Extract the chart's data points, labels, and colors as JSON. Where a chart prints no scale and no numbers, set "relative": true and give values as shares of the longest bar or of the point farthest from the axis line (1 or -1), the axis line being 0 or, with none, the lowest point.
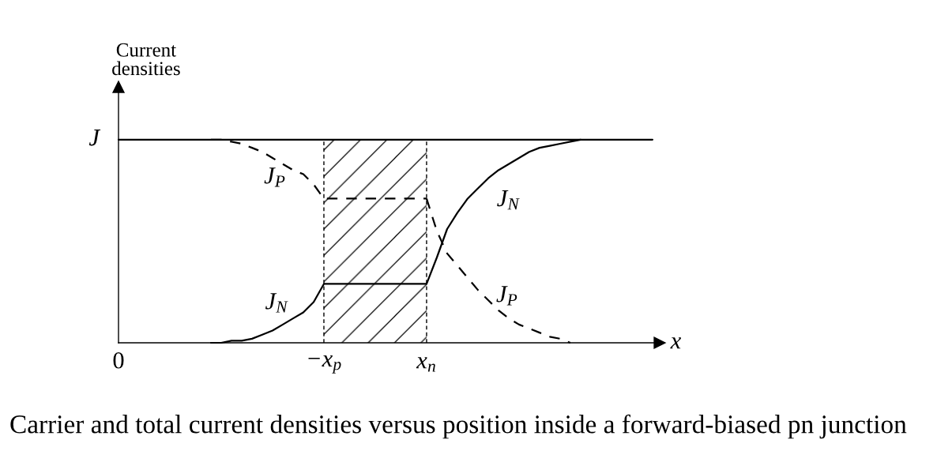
{
  "chart_data": {
    "type": "line",
    "ylabel": "Current\ndensities",
    "xlabel": "x",
    "relative": true,
    "annotations": [
      "Carrier and total current densities versus position inside a forward-biased pn junction"
    ],
    "categories": [
      "0",
      null,
      null,
      null,
      null,
      null,
      null,
      null,
      null,
      null,
      null,
      null,
      null,
      null,
      null,
      null,
      null,
      null,
      null,
      null,
      "−x$_{p}$",
      null,
      null,
      null,
      null,
      null,
      null,
      null,
      null,
      null,
      "x$_{n}$",
      null,
      null,
      null,
      null,
      null,
      null,
      null,
      null,
      null,
      null,
      null,
      null,
      null,
      null,
      null,
      null,
      null,
      null,
      null,
      null,
      null,
      null
    ],
    "line_style": "solid",
    "series": [
      {
        "name": "J",
        "color": "#000000",
        "values": [
          1,
          1,
          1,
          1,
          1,
          1,
          1,
          1,
          1,
          1,
          1,
          1,
          1,
          1,
          1,
          1,
          1,
          1,
          1,
          1,
          1,
          1,
          1,
          1,
          1,
          1,
          1,
          1,
          1,
          1,
          1,
          1,
          1,
          1,
          1,
          1,
          1,
          1,
          1,
          1,
          1,
          1,
          1,
          1,
          1,
          1,
          1,
          1,
          1,
          1,
          1,
          1,
          1
        ]
      },
      {
        "name": "J$_{N}$",
        "color": "#000000",
        "values": [
          null,
          null,
          null,
          null,
          null,
          null,
          null,
          null,
          null,
          0,
          0,
          0.01,
          0.01,
          0.02,
          0.04,
          0.06,
          0.09,
          0.12,
          0.15,
          0.2,
          0.29,
          0.29,
          0.29,
          0.29,
          0.29,
          0.29,
          0.29,
          0.29,
          0.29,
          0.29,
          0.29,
          null,
          null,
          null,
          null,
          null,
          null,
          null,
          null,
          null,
          null,
          null,
          null,
          null,
          null,
          null,
          null,
          null,
          null,
          null,
          null,
          null,
          null
        ]
      },
      {
        "name": "J$_{N}$",
        "color": "#000000",
        "values": [
          null,
          null,
          null,
          null,
          null,
          null,
          null,
          null,
          null,
          null,
          null,
          null,
          null,
          null,
          null,
          null,
          null,
          null,
          null,
          null,
          null,
          null,
          null,
          null,
          null,
          null,
          null,
          null,
          null,
          null,
          0.29,
          0.42,
          0.56,
          0.64,
          0.71,
          0.76,
          0.81,
          0.85,
          0.88,
          0.91,
          0.94,
          0.96,
          0.97,
          0.98,
          0.99,
          1,
          null,
          null,
          null,
          null,
          null,
          null,
          null
        ]
      },
      {
        "name": "J$_{P}$",
        "color": "#000000",
        "line_style": "dashed",
        "values": [
          null,
          null,
          null,
          null,
          null,
          null,
          null,
          null,
          null,
          1,
          1,
          0.99,
          0.98,
          0.96,
          0.94,
          0.91,
          0.88,
          0.85,
          0.83,
          0.78,
          0.71,
          0.71,
          0.71,
          0.71,
          0.71,
          0.71,
          0.71,
          0.71,
          0.71,
          0.71,
          0.71,
          null,
          null,
          null,
          null,
          null,
          null,
          null,
          null,
          null,
          null,
          null,
          null,
          null,
          null,
          null,
          null,
          null,
          null,
          null,
          null,
          null,
          null
        ]
      },
      {
        "name": "J$_{P}$",
        "color": "#000000",
        "line_style": "dashed",
        "values": [
          null,
          null,
          null,
          null,
          null,
          null,
          null,
          null,
          null,
          null,
          null,
          null,
          null,
          null,
          null,
          null,
          null,
          null,
          null,
          null,
          null,
          null,
          null,
          null,
          null,
          null,
          null,
          null,
          null,
          null,
          0.71,
          0.55,
          0.44,
          0.38,
          0.32,
          0.26,
          0.21,
          0.16,
          0.12,
          0.09,
          0.07,
          0.05,
          0.03,
          0.02,
          0,
          null,
          null,
          null,
          null,
          null,
          null,
          null,
          null
        ]
      }
    ],
    "ref_lines": [
      {
        "axis": "x",
        "value": "−x$_{p}$",
        "line_style": "dashed",
        "color": "#000000"
      },
      {
        "axis": "x",
        "value": "x$_{n}$",
        "line_style": "dashed",
        "color": "#000000"
      }
    ],
    "bands": [
      {
        "axis": "x",
        "from": "−x$_{p}$",
        "to": "x$_{n}$",
        "color": "#000000"
      }
    ]
  }
}
